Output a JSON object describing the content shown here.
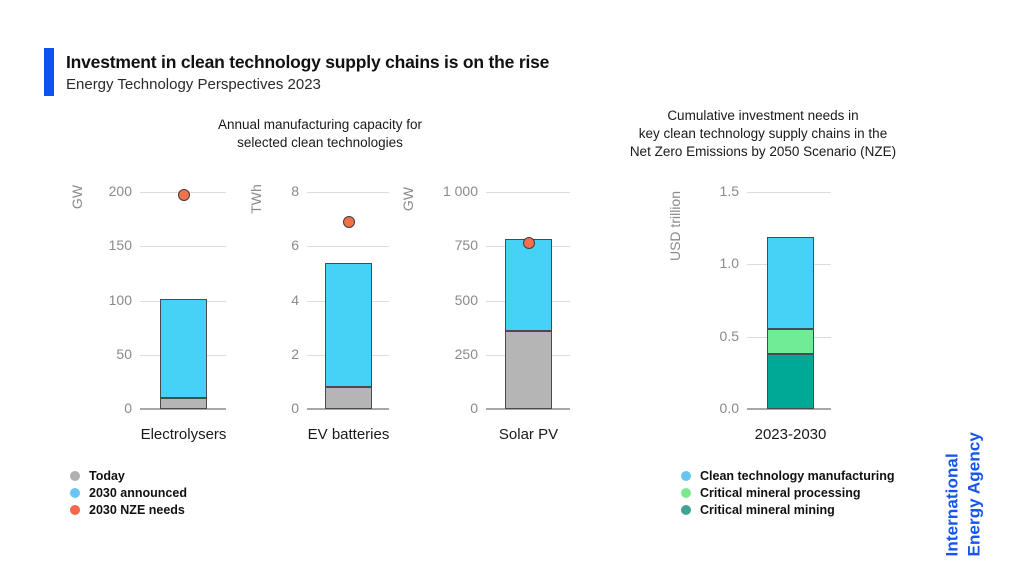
{
  "header": {
    "title": "Investment in clean technology supply chains is on the rise",
    "subtitle": "Energy Technology Perspectives 2023"
  },
  "section_titles": {
    "capacity": [
      "Annual manufacturing capacity for",
      "selected clean technologies"
    ],
    "investment": [
      "Cumulative investment needs in",
      "key clean technology supply chains in the",
      "Net Zero Emissions by 2050 Scenario (NZE)"
    ]
  },
  "chart_data": [
    {
      "type": "bar",
      "title": "Annual manufacturing capacity — Electrolysers",
      "categories": [
        "Electrolysers"
      ],
      "ylabel": "GW",
      "ylim": [
        0,
        200
      ],
      "yticks": [
        0,
        50,
        100,
        150,
        200
      ],
      "ytick_labels": [
        "0",
        "50",
        "100",
        "150",
        "200"
      ],
      "grid": true,
      "series": [
        {
          "name": "Today",
          "values": [
            10
          ],
          "color": "#b5b5b5"
        },
        {
          "name": "2030 announced",
          "values": [
            91
          ],
          "color": "#45d2f6"
        }
      ],
      "stack_totals": [
        101
      ],
      "points": [
        {
          "name": "2030 NZE needs",
          "value": 197,
          "color": "#f3704b"
        }
      ]
    },
    {
      "type": "bar",
      "title": "Annual manufacturing capacity — EV batteries",
      "categories": [
        "EV batteries"
      ],
      "ylabel": "TWh",
      "ylim": [
        0,
        8
      ],
      "yticks": [
        0,
        2,
        4,
        6,
        8
      ],
      "ytick_labels": [
        "0",
        "2",
        "4",
        "6",
        "8"
      ],
      "grid": true,
      "series": [
        {
          "name": "Today",
          "values": [
            0.8
          ],
          "color": "#b5b5b5"
        },
        {
          "name": "2030 announced",
          "values": [
            4.6
          ],
          "color": "#45d2f6"
        }
      ],
      "stack_totals": [
        5.4
      ],
      "points": [
        {
          "name": "2030 NZE needs",
          "value": 6.9,
          "color": "#f3704b"
        }
      ]
    },
    {
      "type": "bar",
      "title": "Annual manufacturing capacity — Solar PV",
      "categories": [
        "Solar PV"
      ],
      "ylabel": "GW",
      "ylim": [
        0,
        1000
      ],
      "yticks": [
        0,
        250,
        500,
        750,
        1000
      ],
      "ytick_labels": [
        "0",
        "250",
        "500",
        "750",
        "1 000"
      ],
      "grid": true,
      "series": [
        {
          "name": "Today",
          "values": [
            360
          ],
          "color": "#b5b5b5"
        },
        {
          "name": "2030 announced",
          "values": [
            425
          ],
          "color": "#45d2f6"
        }
      ],
      "stack_totals": [
        785
      ],
      "points": [
        {
          "name": "2030 NZE needs",
          "value": 765,
          "color": "#f3704b"
        }
      ]
    },
    {
      "type": "bar",
      "title": "Cumulative investment needs in key clean technology supply chains in the Net Zero Emissions by 2050 Scenario (NZE)",
      "categories": [
        "2023-2030"
      ],
      "ylabel": "USD trillion",
      "ylim": [
        0,
        1.5
      ],
      "yticks": [
        0,
        0.5,
        1.0,
        1.5
      ],
      "ytick_labels": [
        "0.0",
        "0.5",
        "1.0",
        "1.5"
      ],
      "grid": true,
      "series": [
        {
          "name": "Critical mineral mining",
          "values": [
            0.38
          ],
          "color": "#00a896"
        },
        {
          "name": "Critical mineral processing",
          "values": [
            0.17
          ],
          "color": "#70ec95"
        },
        {
          "name": "Clean technology manufacturing",
          "values": [
            0.64
          ],
          "color": "#45d2f6"
        }
      ],
      "stack_totals": [
        1.19
      ]
    }
  ],
  "legends": {
    "capacity": [
      {
        "label": "Today",
        "color": "#b0b0b0"
      },
      {
        "label": "2030 announced",
        "color": "#67c6f0"
      },
      {
        "label": "2030 NZE needs",
        "color": "#f3694a"
      }
    ],
    "investment": [
      {
        "label": "Clean technology manufacturing",
        "color": "#67c6f0"
      },
      {
        "label": "Critical mineral processing",
        "color": "#7ce98f"
      },
      {
        "label": "Critical mineral mining",
        "color": "#41a396"
      }
    ]
  },
  "logo": {
    "line1": "International",
    "line2": "Energy Agency"
  },
  "colors": {
    "accent_bar": "#1150f3",
    "iea_blue": "#1655f0",
    "grid_line": "#dcdcdc",
    "axis_line": "#a8a8a8",
    "tick_label": "#8a8a8a"
  }
}
